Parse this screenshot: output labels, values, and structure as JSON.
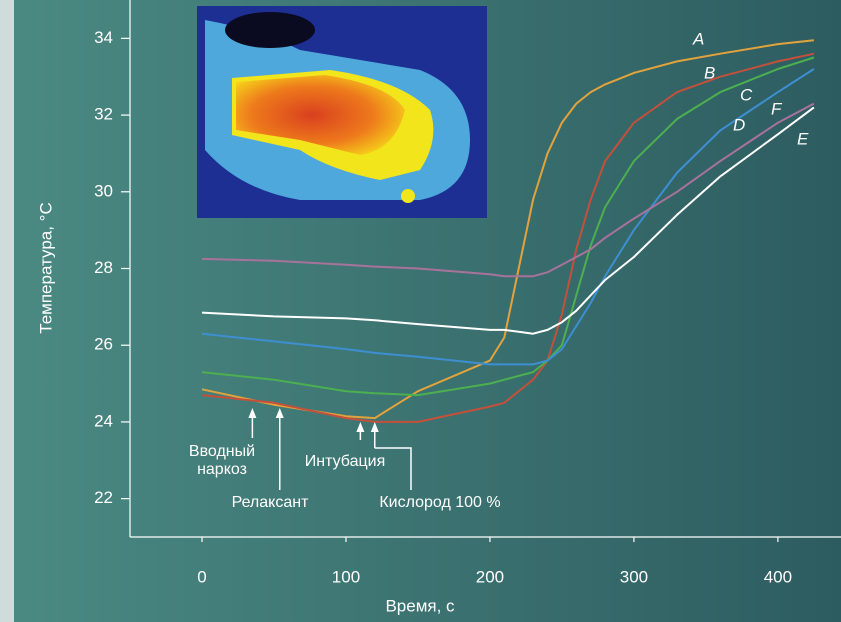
{
  "chart_data": {
    "type": "line",
    "x_label": "Время, с",
    "y_label": "Температура, °С",
    "x": [
      0,
      50,
      100,
      120,
      150,
      200,
      210,
      220,
      230,
      240,
      250,
      260,
      270,
      280,
      300,
      330,
      360,
      400,
      425
    ],
    "series": [
      {
        "name": "A",
        "color": "#e3a33c",
        "values": [
          24.85,
          24.45,
          24.15,
          24.1,
          24.8,
          25.6,
          26.2,
          28.0,
          29.8,
          31.0,
          31.8,
          32.3,
          32.6,
          32.8,
          33.1,
          33.4,
          33.6,
          33.85,
          33.95
        ]
      },
      {
        "name": "B",
        "color": "#c4503c",
        "values": [
          24.7,
          24.5,
          24.1,
          24.0,
          24.0,
          24.4,
          24.5,
          24.8,
          25.1,
          25.6,
          26.8,
          28.5,
          29.8,
          30.8,
          31.8,
          32.6,
          33.0,
          33.4,
          33.6
        ]
      },
      {
        "name": "C",
        "color": "#4caf50",
        "values": [
          25.3,
          25.1,
          24.8,
          24.75,
          24.7,
          25.0,
          25.1,
          25.2,
          25.3,
          25.6,
          26.0,
          27.3,
          28.6,
          29.6,
          30.8,
          31.9,
          32.6,
          33.2,
          33.5
        ]
      },
      {
        "name": "D",
        "color": "#3d8fd2",
        "values": [
          26.3,
          26.1,
          25.9,
          25.8,
          25.7,
          25.5,
          25.5,
          25.5,
          25.5,
          25.6,
          25.9,
          26.5,
          27.1,
          27.8,
          29.0,
          30.5,
          31.6,
          32.6,
          33.2
        ]
      },
      {
        "name": "E",
        "color": "#ffffff",
        "values": [
          26.85,
          26.75,
          26.7,
          26.65,
          26.55,
          26.4,
          26.4,
          26.35,
          26.3,
          26.4,
          26.6,
          26.9,
          27.3,
          27.7,
          28.3,
          29.4,
          30.4,
          31.5,
          32.2
        ]
      },
      {
        "name": "F",
        "color": "#a8739a",
        "values": [
          28.25,
          28.2,
          28.1,
          28.05,
          28.0,
          27.85,
          27.8,
          27.8,
          27.8,
          27.9,
          28.1,
          28.3,
          28.5,
          28.8,
          29.3,
          30.0,
          30.8,
          31.8,
          32.3
        ]
      }
    ],
    "xlim": [
      -50,
      440
    ],
    "ylim": [
      21,
      35
    ],
    "xticks": [
      0,
      100,
      200,
      300,
      400
    ],
    "yticks": [
      22,
      24,
      26,
      28,
      30,
      32,
      34
    ],
    "annotations": [
      {
        "text": [
          "Вводный",
          "наркоз"
        ],
        "x": 35
      },
      {
        "text": [
          "Релаксант"
        ],
        "x": 54
      },
      {
        "text": [
          "Интубация"
        ],
        "x": 110
      },
      {
        "text": [
          "Кислород 100 %"
        ],
        "x": 120
      }
    ]
  }
}
